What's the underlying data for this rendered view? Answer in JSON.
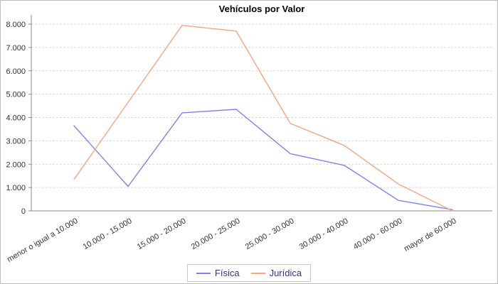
{
  "title": "Vehículos por Valor",
  "chart_data": {
    "type": "line",
    "title": "Vehículos por Valor",
    "xlabel": "",
    "ylabel": "",
    "categories": [
      "menor o igual a 10.000",
      "10.000 - 15.000",
      "15.000 - 20.000",
      "20.000 - 25.000",
      "25.000 - 30.000",
      "30.000 - 40.000",
      "40.000 - 60.000",
      "mayor de 60.000"
    ],
    "series": [
      {
        "name": "Física",
        "color": "#8080F0",
        "values": [
          3650,
          1050,
          4200,
          4350,
          2450,
          1950,
          450,
          50
        ]
      },
      {
        "name": "Jurídica",
        "color": "#F9A47E",
        "values": [
          1350,
          4650,
          7950,
          7700,
          3750,
          2800,
          1150,
          0
        ]
      }
    ],
    "ylim": [
      0,
      8000
    ],
    "y_ticks": [
      0,
      1000,
      2000,
      3000,
      4000,
      5000,
      6000,
      7000,
      8000
    ],
    "y_tick_labels": [
      "0",
      "1.000",
      "2.000",
      "3.000",
      "4.000",
      "5.000",
      "6.000",
      "7.000",
      "8.000"
    ],
    "grid": "horizontal-dashed",
    "x_label_rotation_deg": -30,
    "legend_position": "bottom-center"
  },
  "colors": {
    "axis": "#8a8a8a",
    "gridline": "#d8d8d8",
    "tick_text": "#333333",
    "title_text": "#000000",
    "legend_text": "#3d2e8c",
    "legend_border": "#c9c9c9",
    "background": "#ffffff"
  }
}
